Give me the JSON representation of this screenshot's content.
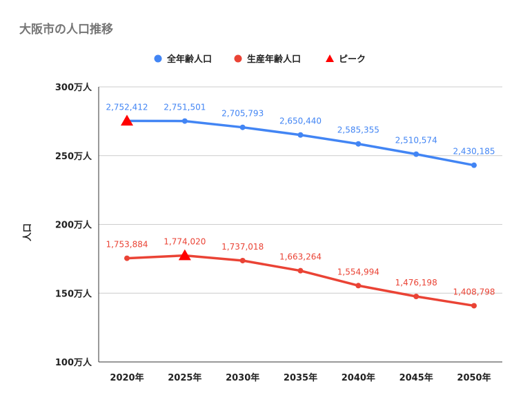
{
  "chart_data": {
    "type": "line",
    "title": "大阪市の人口推移",
    "ylabel": "人口",
    "xlabel": "",
    "categories": [
      "2020年",
      "2025年",
      "2030年",
      "2035年",
      "2040年",
      "2045年",
      "2050年"
    ],
    "ylim": [
      1000000,
      3000000
    ],
    "yticks": [
      {
        "value": 1000000,
        "label": "100万人"
      },
      {
        "value": 1500000,
        "label": "150万人"
      },
      {
        "value": 2000000,
        "label": "200万人"
      },
      {
        "value": 2500000,
        "label": "250万人"
      },
      {
        "value": 3000000,
        "label": "300万人"
      }
    ],
    "grid": true,
    "legend_position": "top",
    "series": [
      {
        "name": "全年齢人口",
        "color": "#4285F4",
        "values": [
          2752412,
          2751501,
          2705793,
          2650440,
          2585355,
          2510574,
          2430185
        ],
        "labels": [
          "2,752,412",
          "2,751,501",
          "2,705,793",
          "2,650,440",
          "2,585,355",
          "2,510,574",
          "2,430,185"
        ],
        "peak_index": 0
      },
      {
        "name": "生産年齢人口",
        "color": "#EA4335",
        "values": [
          1753884,
          1774020,
          1737018,
          1663264,
          1554994,
          1476198,
          1408798
        ],
        "labels": [
          "1,753,884",
          "1,774,020",
          "1,737,018",
          "1,663,264",
          "1,554,994",
          "1,476,198",
          "1,408,798"
        ],
        "peak_index": 1
      }
    ],
    "peak_marker": {
      "name": "ピーク",
      "color": "#FF0000",
      "shape": "triangle"
    }
  }
}
